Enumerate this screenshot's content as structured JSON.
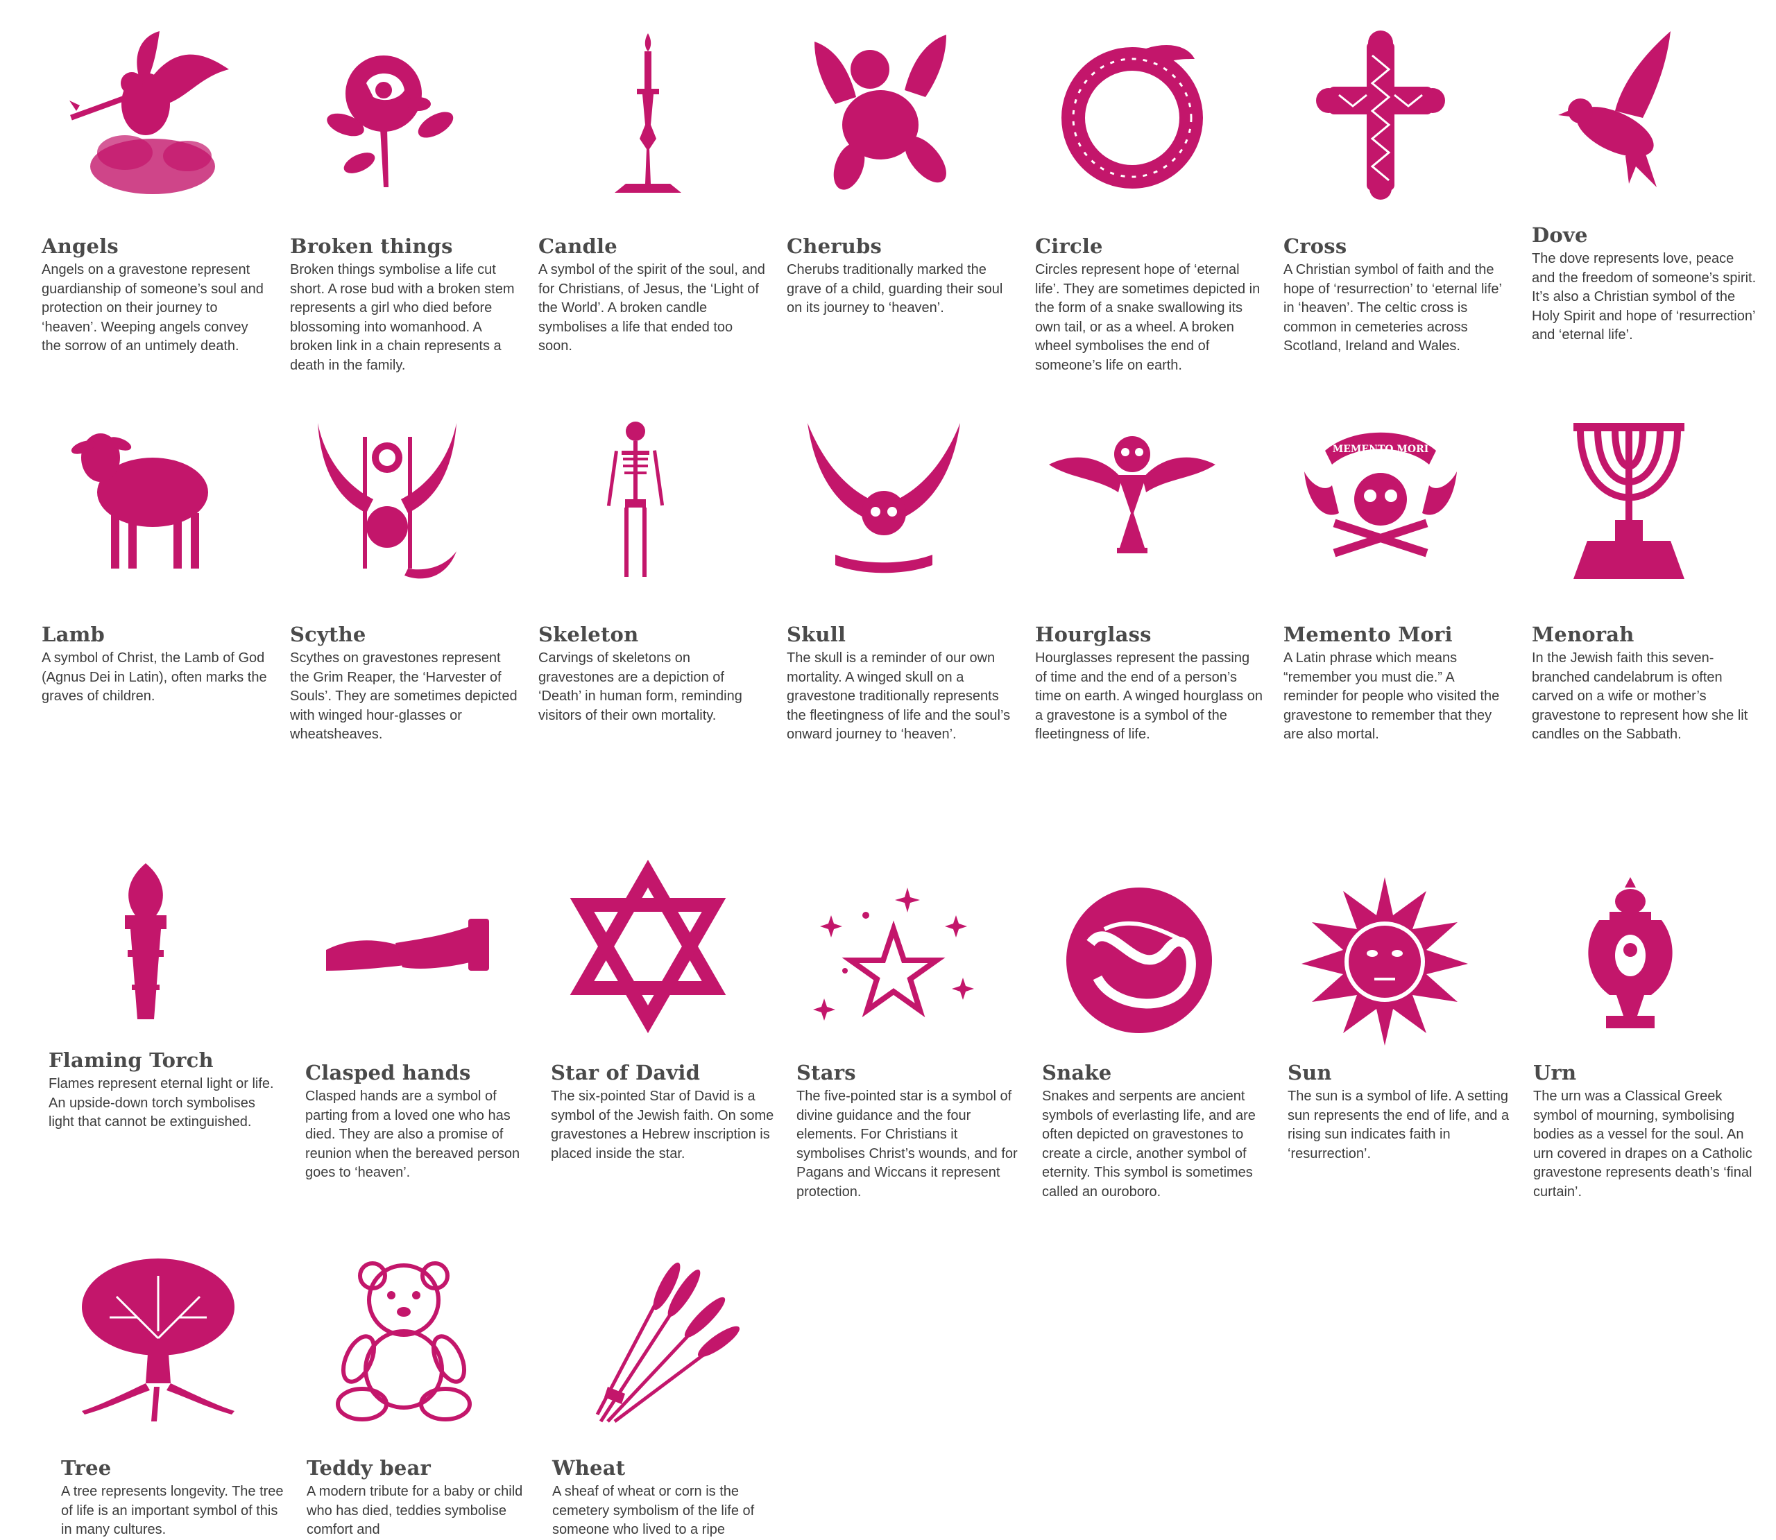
{
  "accent_color": "#c3166b",
  "symbols": [
    {
      "icon": "angel-icon",
      "title": "Angels",
      "text": "Angels on a gravestone represent guardianship of someone’s soul and protection on their journey to ‘heaven’. Weeping angels convey the sorrow of an untimely death."
    },
    {
      "icon": "rose-icon",
      "title": "Broken things",
      "text": "Broken things symbolise a life cut short. A rose bud with a broken stem represents a girl who died before blossoming into womanhood. A broken link in a chain represents a death in the family."
    },
    {
      "icon": "candle-icon",
      "title": "Candle",
      "text": "A symbol of the spirit of the soul, and for Christians, of Jesus, the ‘Light of the World’. A broken candle symbolises a life that ended too soon."
    },
    {
      "icon": "cherub-icon",
      "title": "Cherubs",
      "text": "Cherubs traditionally marked the grave of a child, guarding their soul on its journey to ‘heaven’."
    },
    {
      "icon": "circle-serpent-icon",
      "title": "Circle",
      "text": "Circles represent hope of ‘eternal life’. They are sometimes depicted in the form of a snake swallowing its own tail, or as a wheel. A broken wheel symbolises the end of someone’s life on earth."
    },
    {
      "icon": "cross-icon",
      "title": "Cross",
      "text": "A Christian symbol of faith and the hope of ‘resurrection’ to ‘eternal life’ in ‘heaven’. The celtic cross is common in cemeteries across Scotland, Ireland and Wales."
    },
    {
      "icon": "dove-icon",
      "title": "Dove",
      "text": "The dove represents love, peace and the freedom of someone’s spirit. It’s also a Christian symbol of the Holy Spirit and hope of ‘resurrection’ and ‘eternal life’."
    },
    {
      "icon": "lamb-icon",
      "title": "Lamb",
      "text": "A symbol of Christ, the Lamb of God (Agnus Dei in Latin), often marks the graves of children."
    },
    {
      "icon": "scythe-icon",
      "title": "Scythe",
      "text": "Scythes on gravestones represent the Grim Reaper, the ‘Harvester of Souls’. They are sometimes depicted with winged hour-glasses or wheatsheaves."
    },
    {
      "icon": "skeleton-icon",
      "title": "Skeleton",
      "text": "Carvings of skeletons on gravestones are a depiction of ‘Death’ in human form, reminding visitors of their own mortality."
    },
    {
      "icon": "winged-skull-icon",
      "title": "Skull",
      "text": "The skull is a reminder of our own mortality. A winged skull on a gravestone traditionally represents the fleetingness of life and the soul’s onward journey to ‘heaven’."
    },
    {
      "icon": "hourglass-icon",
      "title": "Hourglass",
      "text": "Hourglasses represent the passing of time and the end of a person’s time on earth. A winged hourglass on a gravestone is a symbol of the fleetingness of life."
    },
    {
      "icon": "memento-mori-icon",
      "title": "Memento Mori",
      "banner": "MEMENTO MORI",
      "text": "A Latin phrase which means “remember you must die.” A reminder for people who visited the gravestone to remember that they are also mortal."
    },
    {
      "icon": "menorah-icon",
      "title": "Menorah",
      "text": "In the Jewish faith this seven-branched candelabrum is often carved on a wife or mother’s gravestone to represent how she lit candles on the Sabbath."
    },
    {
      "icon": "torch-icon",
      "title": "Flaming Torch",
      "text": "Flames represent eternal light or life. An upside-down torch symbolises light that cannot be extinguished."
    },
    {
      "icon": "clasped-hands-icon",
      "title": "Clasped hands",
      "text": "Clasped hands are a symbol of parting from a loved one who has died. They are also a promise of reunion when the bereaved person goes to ‘heaven’."
    },
    {
      "icon": "star-of-david-icon",
      "title": "Star of David",
      "text": "The six-pointed Star of David is a symbol of the Jewish faith. On some gravestones a Hebrew inscription is placed inside the star."
    },
    {
      "icon": "stars-icon",
      "title": "Stars",
      "text": "The five-pointed star is a symbol of divine guidance and the four elements. For Christians it symbolises Christ’s wounds, and for Pagans and Wiccans it represent protection."
    },
    {
      "icon": "snake-icon",
      "title": "Snake",
      "text": "Snakes and serpents are ancient symbols of everlasting life, and are often depicted on gravestones to create a circle, another symbol of eternity. This symbol is sometimes called an ouroboro."
    },
    {
      "icon": "sun-icon",
      "title": "Sun",
      "text": "The sun is a symbol of life. A setting sun represents the end of life, and a rising sun indicates faith in ‘resurrection’."
    },
    {
      "icon": "urn-icon",
      "title": "Urn",
      "text": "The urn was a Classical Greek symbol of mourning, symbolising bodies as a vessel for the soul. An urn covered in drapes on a Catholic gravestone represents death’s ‘final curtain’."
    },
    {
      "icon": "tree-icon",
      "title": "Tree",
      "text": "A tree represents longevity. The tree of life is an important symbol of this in many cultures."
    },
    {
      "icon": "teddy-bear-icon",
      "title": "Teddy bear",
      "text": "A modern tribute for a baby or child who has died, teddies symbolise comfort and"
    },
    {
      "icon": "wheat-icon",
      "title": "Wheat",
      "text": "A sheaf of wheat or corn is the cemetery symbolism of the life of someone who lived to a ripe"
    }
  ]
}
